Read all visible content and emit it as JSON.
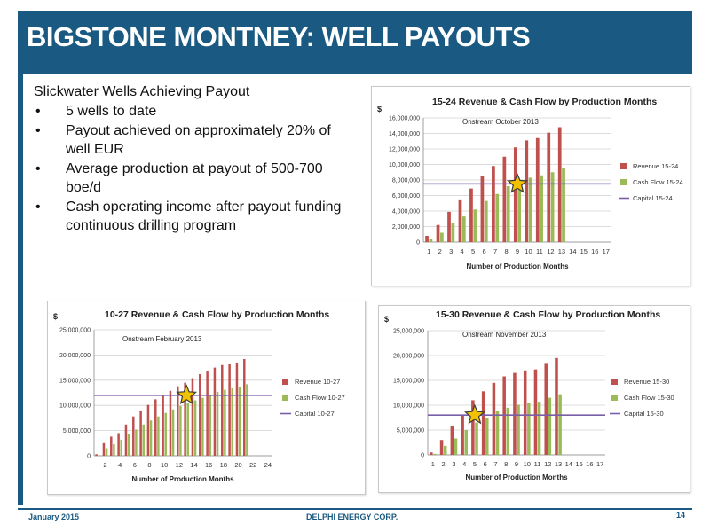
{
  "header": {
    "title": "BIGSTONE MONTNEY:  WELL PAYOUTS"
  },
  "bullets": {
    "heading": "Slickwater Wells Achieving Payout",
    "items": [
      "5 wells to date",
      "Payout achieved on approximately 20% of well EUR",
      "Average production at payout of 500-700 boe/d",
      "Cash operating income after payout funding continuous drilling program"
    ],
    "bullet_glyph": "•"
  },
  "footer": {
    "date": "January 2015",
    "company": "DELPHI ENERGY CORP.",
    "page": "14"
  },
  "colors": {
    "brand": "#1a5a82",
    "revenue": "#c0504d",
    "cashflow": "#9bbb59",
    "capital": "#7a5fa8",
    "star": "#f2c200"
  },
  "chart_data": [
    {
      "type": "bar",
      "title": "15-24 Revenue & Cash Flow by Production Months",
      "ylabel": "$",
      "xlabel": "Number of Production Months",
      "annotation": "Onstream October 2013",
      "categories": [
        "1",
        "2",
        "3",
        "4",
        "5",
        "6",
        "7",
        "8",
        "9",
        "10",
        "11",
        "12",
        "13",
        "14",
        "15",
        "16",
        "17"
      ],
      "ylim": [
        0,
        16000000
      ],
      "yticks": [
        0,
        2000000,
        4000000,
        6000000,
        8000000,
        10000000,
        12000000,
        14000000,
        16000000
      ],
      "ytick_labels": [
        "0",
        "2,000,000",
        "4,000,000",
        "6,000,000",
        "8,000,000",
        "10,000,000",
        "12,000,000",
        "14,000,000",
        "16,000,000"
      ],
      "series": [
        {
          "name": "Revenue 15-24",
          "values": [
            800000,
            2200000,
            3900000,
            5500000,
            6900000,
            8500000,
            9800000,
            11000000,
            12200000,
            13100000,
            13400000,
            14100000,
            14800000,
            null,
            null,
            null,
            null
          ]
        },
        {
          "name": "Cash Flow 15-24",
          "values": [
            400000,
            1200000,
            2400000,
            3300000,
            4200000,
            5300000,
            6200000,
            7200000,
            8000000,
            8300000,
            8600000,
            9000000,
            9500000,
            null,
            null,
            null,
            null
          ]
        }
      ],
      "capital": {
        "name": "Capital 15-24",
        "value": 7500000
      },
      "payout_star_x": 9
    },
    {
      "type": "bar",
      "title": "10-27 Revenue & Cash Flow by Production Months",
      "ylabel": "$",
      "xlabel": "Number of Production Months",
      "annotation": "Onstream February 2013",
      "categories": [
        "1",
        "2",
        "3",
        "4",
        "5",
        "6",
        "7",
        "8",
        "9",
        "10",
        "11",
        "12",
        "13",
        "14",
        "15",
        "16",
        "17",
        "18",
        "19",
        "20",
        "21",
        "22",
        "23",
        "24"
      ],
      "xtick_labels": [
        "2",
        "4",
        "6",
        "8",
        "10",
        "12",
        "14",
        "16",
        "18",
        "20",
        "22",
        "24"
      ],
      "ylim": [
        0,
        25000000
      ],
      "yticks": [
        0,
        5000000,
        10000000,
        15000000,
        20000000,
        25000000
      ],
      "ytick_labels": [
        "0",
        "5,000,000",
        "10,000,000",
        "15,000,000",
        "20,000,000",
        "25,000,000"
      ],
      "series": [
        {
          "name": "Revenue 10-27",
          "values": [
            300000,
            2500000,
            3800000,
            4500000,
            6200000,
            7800000,
            9000000,
            10100000,
            11200000,
            12000000,
            12900000,
            13800000,
            14500000,
            15400000,
            16200000,
            16900000,
            17500000,
            18000000,
            18200000,
            18500000,
            19200000,
            null,
            null,
            null
          ]
        },
        {
          "name": "Cash Flow 10-27",
          "values": [
            100000,
            1500000,
            2300000,
            3200000,
            4300000,
            5200000,
            6200000,
            7000000,
            7800000,
            8500000,
            9200000,
            9900000,
            10400000,
            11000000,
            11500000,
            12100000,
            12700000,
            13100000,
            13400000,
            13700000,
            14200000,
            null,
            null,
            null
          ]
        }
      ],
      "capital": {
        "name": "Capital 10-27",
        "value": 12000000
      },
      "payout_star_x": 13
    },
    {
      "type": "bar",
      "title": "15-30 Revenue & Cash Flow by Production Months",
      "ylabel": "$",
      "xlabel": "Number of Production Months",
      "annotation": "Onstream November 2013",
      "categories": [
        "1",
        "2",
        "3",
        "4",
        "5",
        "6",
        "7",
        "8",
        "9",
        "10",
        "11",
        "12",
        "13",
        "14",
        "15",
        "16",
        "17"
      ],
      "ylim": [
        0,
        25000000
      ],
      "yticks": [
        0,
        5000000,
        10000000,
        15000000,
        20000000,
        25000000
      ],
      "ytick_labels": [
        "0",
        "5,000,000",
        "10,000,000",
        "15,000,000",
        "20,000,000",
        "25,000,000"
      ],
      "series": [
        {
          "name": "Revenue 15-30",
          "values": [
            500000,
            3000000,
            5800000,
            8000000,
            11000000,
            12800000,
            14500000,
            15800000,
            16500000,
            17000000,
            17200000,
            18500000,
            19500000,
            null,
            null,
            null,
            null
          ]
        },
        {
          "name": "Cash Flow 15-30",
          "values": [
            200000,
            1800000,
            3300000,
            5000000,
            6500000,
            7500000,
            8800000,
            9500000,
            10100000,
            10500000,
            10700000,
            11500000,
            12200000,
            null,
            null,
            null,
            null
          ]
        }
      ],
      "capital": {
        "name": "Capital 15-30",
        "value": 8000000
      },
      "payout_star_x": 5
    }
  ]
}
